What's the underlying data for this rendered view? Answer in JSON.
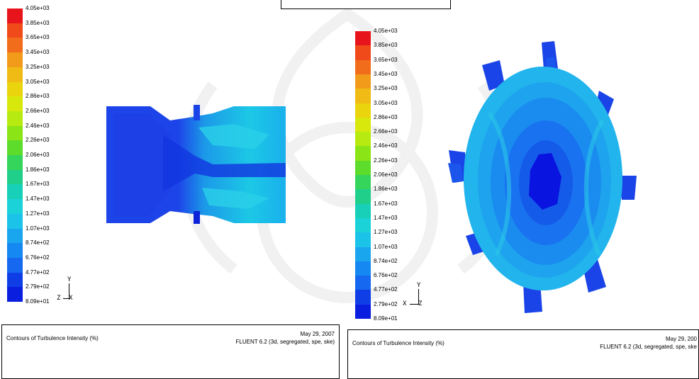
{
  "legend": {
    "colors": [
      "#e8141b",
      "#f04a1a",
      "#f26d1b",
      "#f29a1a",
      "#efbb14",
      "#e9d40d",
      "#d9e80c",
      "#b6ea10",
      "#8ae416",
      "#5ddc2b",
      "#35d45a",
      "#20cf8a",
      "#18cfb8",
      "#1bd2d8",
      "#1cc3e8",
      "#1aa6ef",
      "#1688f1",
      "#1568ef",
      "#0f3ee6",
      "#0a1ee0"
    ],
    "labels": [
      "4.05e+03",
      "3.85e+03",
      "3.65e+03",
      "3.45e+03",
      "3.25e+03",
      "3.05e+03",
      "2.86e+03",
      "2.66e+03",
      "2.46e+03",
      "2.26e+03",
      "2.06e+03",
      "1.86e+03",
      "1.67e+03",
      "1.47e+03",
      "1.27e+03",
      "1.07e+03",
      "8.74e+02",
      "6.76e+02",
      "4.77e+02",
      "2.79e+02",
      "8.09e+01"
    ]
  },
  "left_panel": {
    "axis": {
      "up": "Y",
      "left": "Z",
      "right": "X"
    },
    "info": {
      "title": "Contours of Turbulence Intensity (%)",
      "date": "May 29, 2007",
      "version": "FLUENT 6.2 (3d, segregated, spe, ske)"
    }
  },
  "right_panel": {
    "axis": {
      "up": "Y",
      "left": "X",
      "right": "Z"
    },
    "info": {
      "title": "Contours of Turbulence Intensity (%)",
      "date": "May 29, 200",
      "version": "FLUENT 6.2 (3d, segregated, spe, ske"
    }
  }
}
